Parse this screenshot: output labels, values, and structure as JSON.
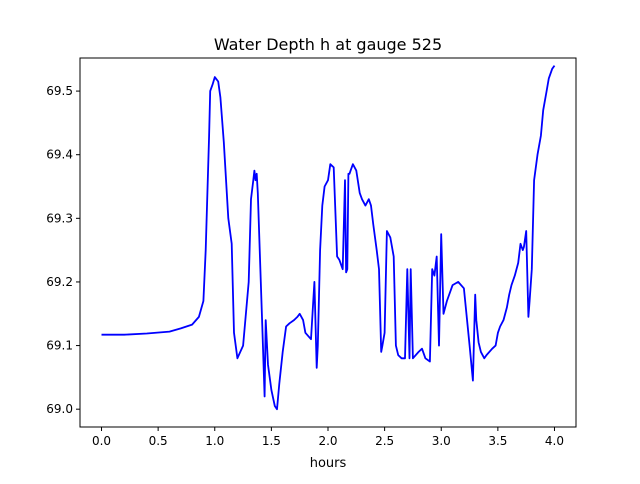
{
  "chart_data": {
    "type": "line",
    "title": "Water Depth h at gauge 525",
    "xlabel": "hours",
    "ylabel": "",
    "xlim": [
      -0.19,
      4.19
    ],
    "ylim": [
      68.972,
      69.552
    ],
    "x_ticks": [
      0.0,
      0.5,
      1.0,
      1.5,
      2.0,
      2.5,
      3.0,
      3.5,
      4.0
    ],
    "x_tick_labels": [
      "0.0",
      "0.5",
      "1.0",
      "1.5",
      "2.0",
      "2.5",
      "3.0",
      "3.5",
      "4.0"
    ],
    "y_ticks": [
      69.0,
      69.1,
      69.2,
      69.3,
      69.4,
      69.5
    ],
    "y_tick_labels": [
      "69.0",
      "69.1",
      "69.2",
      "69.3",
      "69.4",
      "69.5"
    ],
    "grid": false,
    "legend": "none",
    "line_color": "#0000ff",
    "x": [
      0.0,
      0.2,
      0.4,
      0.6,
      0.7,
      0.8,
      0.86,
      0.9,
      0.92,
      0.95,
      0.96,
      0.98,
      1.0,
      1.03,
      1.05,
      1.08,
      1.12,
      1.15,
      1.17,
      1.2,
      1.25,
      1.3,
      1.32,
      1.34,
      1.35,
      1.36,
      1.37,
      1.38,
      1.42,
      1.44,
      1.45,
      1.47,
      1.5,
      1.53,
      1.55,
      1.57,
      1.6,
      1.63,
      1.66,
      1.7,
      1.73,
      1.75,
      1.78,
      1.8,
      1.85,
      1.88,
      1.9,
      1.91,
      1.93,
      1.95,
      1.97,
      2.0,
      2.02,
      2.05,
      2.08,
      2.1,
      2.13,
      2.15,
      2.16,
      2.17,
      2.18,
      2.19,
      2.2,
      2.22,
      2.25,
      2.28,
      2.3,
      2.33,
      2.36,
      2.38,
      2.4,
      2.43,
      2.45,
      2.47,
      2.48,
      2.5,
      2.52,
      2.55,
      2.58,
      2.6,
      2.62,
      2.65,
      2.68,
      2.7,
      2.72,
      2.73,
      2.75,
      2.8,
      2.83,
      2.86,
      2.9,
      2.92,
      2.94,
      2.96,
      2.98,
      3.0,
      3.02,
      3.05,
      3.1,
      3.15,
      3.2,
      3.25,
      3.28,
      3.3,
      3.31,
      3.33,
      3.35,
      3.38,
      3.4,
      3.45,
      3.48,
      3.5,
      3.52,
      3.55,
      3.58,
      3.6,
      3.62,
      3.65,
      3.68,
      3.7,
      3.72,
      3.73,
      3.75,
      3.77,
      3.78,
      3.8,
      3.82,
      3.85,
      3.88,
      3.9,
      3.93,
      3.95,
      3.98,
      4.0
    ],
    "y": [
      69.117,
      69.117,
      69.119,
      69.122,
      69.127,
      69.133,
      69.145,
      69.17,
      69.25,
      69.43,
      69.5,
      69.51,
      69.522,
      69.515,
      69.49,
      69.42,
      69.3,
      69.26,
      69.12,
      69.08,
      69.1,
      69.2,
      69.33,
      69.36,
      69.375,
      69.36,
      69.37,
      69.34,
      69.13,
      69.02,
      69.14,
      69.07,
      69.03,
      69.005,
      69.0,
      69.04,
      69.09,
      69.13,
      69.135,
      69.14,
      69.145,
      69.15,
      69.14,
      69.12,
      69.11,
      69.2,
      69.065,
      69.1,
      69.25,
      69.32,
      69.35,
      69.36,
      69.385,
      69.38,
      69.24,
      69.235,
      69.22,
      69.36,
      69.215,
      69.22,
      69.37,
      69.37,
      69.375,
      69.385,
      69.375,
      69.34,
      69.33,
      69.32,
      69.33,
      69.32,
      69.29,
      69.25,
      69.22,
      69.09,
      69.1,
      69.12,
      69.28,
      69.27,
      69.24,
      69.1,
      69.085,
      69.08,
      69.08,
      69.22,
      69.08,
      69.22,
      69.08,
      69.09,
      69.095,
      69.08,
      69.075,
      69.22,
      69.21,
      69.24,
      69.1,
      69.275,
      69.15,
      69.17,
      69.195,
      69.2,
      69.19,
      69.1,
      69.045,
      69.18,
      69.14,
      69.105,
      69.09,
      69.08,
      69.085,
      69.095,
      69.1,
      69.12,
      69.13,
      69.14,
      69.16,
      69.18,
      69.195,
      69.21,
      69.23,
      69.26,
      69.25,
      69.255,
      69.28,
      69.145,
      69.17,
      69.22,
      69.36,
      69.4,
      69.43,
      69.47,
      69.5,
      69.52,
      69.535,
      69.54
    ]
  }
}
